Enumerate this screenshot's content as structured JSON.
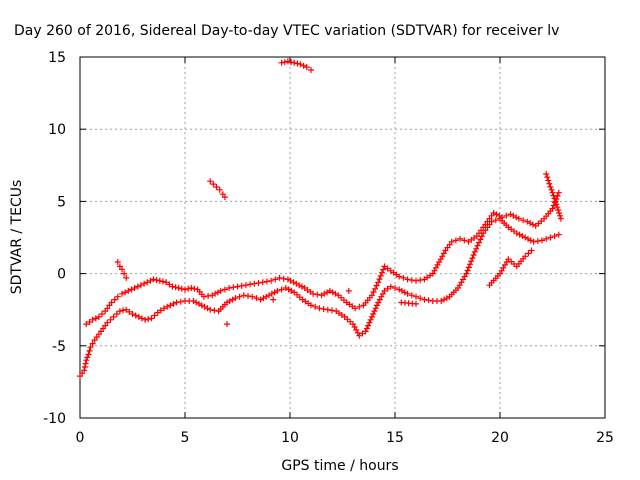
{
  "chart_data": {
    "type": "scatter",
    "title": "Day 260 of 2016, Sidereal Day-to-day VTEC variation (SDTVAR) for receiver lv",
    "xlabel": "GPS time / hours",
    "ylabel": "SDTVAR / TECUs",
    "xlim": [
      0,
      25
    ],
    "ylim": [
      -10,
      15
    ],
    "xticks": [
      "0",
      "5",
      "10",
      "15",
      "20",
      "25"
    ],
    "yticks": [
      "-10",
      "-5",
      "0",
      "5",
      "10",
      "15"
    ],
    "grid": true,
    "legend": "none",
    "marker": "+",
    "color": "#ff0000",
    "series": [
      {
        "values": [
          [
            0.0,
            -7.1
          ],
          [
            0.2,
            -6.7
          ],
          [
            0.3,
            -6.0
          ],
          [
            0.4,
            -5.6
          ],
          [
            0.5,
            -5.1
          ],
          [
            0.7,
            -4.6
          ],
          [
            0.9,
            -4.2
          ],
          [
            1.1,
            -3.8
          ],
          [
            1.3,
            -3.4
          ],
          [
            1.6,
            -3.0
          ],
          [
            1.9,
            -2.6
          ],
          [
            2.2,
            -2.5
          ],
          [
            2.5,
            -2.8
          ],
          [
            2.8,
            -3.0
          ],
          [
            3.1,
            -3.2
          ],
          [
            3.4,
            -3.1
          ],
          [
            3.7,
            -2.7
          ],
          [
            4.0,
            -2.4
          ],
          [
            4.3,
            -2.2
          ],
          [
            4.6,
            -2.0
          ],
          [
            5.0,
            -1.9
          ],
          [
            5.4,
            -1.9
          ],
          [
            5.8,
            -2.2
          ],
          [
            6.2,
            -2.5
          ],
          [
            6.6,
            -2.6
          ],
          [
            7.0,
            -2.0
          ],
          [
            7.4,
            -1.7
          ],
          [
            7.8,
            -1.5
          ],
          [
            8.2,
            -1.6
          ],
          [
            8.6,
            -1.8
          ],
          [
            9.0,
            -1.5
          ],
          [
            9.4,
            -1.2
          ],
          [
            9.8,
            -1.0
          ],
          [
            10.2,
            -1.3
          ],
          [
            10.6,
            -1.8
          ],
          [
            11.0,
            -2.2
          ],
          [
            11.4,
            -2.4
          ],
          [
            11.8,
            -2.5
          ],
          [
            12.2,
            -2.6
          ],
          [
            12.6,
            -3.0
          ],
          [
            13.0,
            -3.5
          ],
          [
            13.3,
            -4.3
          ],
          [
            13.6,
            -4.0
          ],
          [
            13.9,
            -3.0
          ],
          [
            14.2,
            -2.0
          ],
          [
            14.5,
            -1.2
          ],
          [
            14.8,
            -0.9
          ],
          [
            15.2,
            -1.1
          ],
          [
            15.6,
            -1.4
          ],
          [
            16.0,
            -1.6
          ],
          [
            16.4,
            -1.8
          ],
          [
            16.8,
            -1.9
          ],
          [
            17.2,
            -1.9
          ],
          [
            17.6,
            -1.6
          ],
          [
            18.0,
            -1.0
          ],
          [
            18.4,
            0.0
          ],
          [
            18.8,
            1.5
          ],
          [
            19.2,
            2.8
          ],
          [
            19.6,
            3.6
          ],
          [
            20.0,
            3.8
          ],
          [
            20.4,
            3.2
          ],
          [
            20.8,
            2.8
          ],
          [
            21.2,
            2.5
          ],
          [
            21.6,
            2.2
          ],
          [
            22.0,
            2.3
          ],
          [
            22.4,
            2.5
          ],
          [
            22.8,
            2.7
          ]
        ]
      },
      {
        "values": [
          [
            0.3,
            -3.5
          ],
          [
            0.6,
            -3.2
          ],
          [
            0.9,
            -3.0
          ],
          [
            1.2,
            -2.6
          ],
          [
            1.5,
            -2.0
          ],
          [
            1.8,
            -1.6
          ],
          [
            2.0,
            -1.4
          ],
          [
            2.3,
            -1.2
          ],
          [
            2.6,
            -1.0
          ],
          [
            2.9,
            -0.8
          ],
          [
            3.2,
            -0.6
          ],
          [
            3.5,
            -0.4
          ],
          [
            3.8,
            -0.5
          ],
          [
            4.1,
            -0.6
          ],
          [
            4.4,
            -0.9
          ],
          [
            4.7,
            -1.0
          ],
          [
            5.0,
            -1.1
          ],
          [
            5.3,
            -1.0
          ],
          [
            5.6,
            -1.1
          ],
          [
            5.9,
            -1.6
          ],
          [
            6.3,
            -1.5
          ],
          [
            6.7,
            -1.2
          ],
          [
            7.1,
            -1.0
          ],
          [
            7.5,
            -0.9
          ],
          [
            7.9,
            -0.8
          ],
          [
            8.3,
            -0.7
          ],
          [
            8.7,
            -0.6
          ],
          [
            9.1,
            -0.5
          ],
          [
            9.5,
            -0.3
          ],
          [
            9.9,
            -0.4
          ],
          [
            10.3,
            -0.7
          ],
          [
            10.7,
            -1.0
          ],
          [
            11.1,
            -1.4
          ],
          [
            11.5,
            -1.5
          ],
          [
            11.9,
            -1.2
          ],
          [
            12.3,
            -1.5
          ],
          [
            12.7,
            -2.0
          ],
          [
            13.1,
            -2.4
          ],
          [
            13.5,
            -2.2
          ],
          [
            13.9,
            -1.5
          ],
          [
            14.2,
            -0.6
          ],
          [
            14.5,
            0.5
          ],
          [
            14.8,
            0.2
          ],
          [
            15.2,
            -0.2
          ],
          [
            15.6,
            -0.4
          ],
          [
            16.0,
            -0.5
          ],
          [
            16.4,
            -0.4
          ],
          [
            16.8,
            0.0
          ],
          [
            17.1,
            0.8
          ],
          [
            17.4,
            1.6
          ],
          [
            17.7,
            2.2
          ],
          [
            18.1,
            2.4
          ],
          [
            18.5,
            2.2
          ],
          [
            18.9,
            2.6
          ],
          [
            19.3,
            3.4
          ],
          [
            19.7,
            4.2
          ],
          [
            20.1,
            3.9
          ],
          [
            20.5,
            4.1
          ],
          [
            20.9,
            3.8
          ],
          [
            21.3,
            3.6
          ],
          [
            21.7,
            3.3
          ],
          [
            22.1,
            3.8
          ],
          [
            22.5,
            4.5
          ],
          [
            22.8,
            5.6
          ]
        ]
      },
      {
        "values": [
          [
            1.8,
            0.8
          ],
          [
            1.9,
            0.5
          ],
          [
            2.0,
            0.3
          ],
          [
            2.1,
            0.0
          ],
          [
            2.2,
            -0.3
          ],
          [
            6.2,
            6.4
          ],
          [
            6.35,
            6.2
          ],
          [
            6.5,
            6.0
          ],
          [
            6.65,
            5.8
          ],
          [
            6.8,
            5.5
          ],
          [
            6.9,
            5.3
          ],
          [
            9.6,
            14.6
          ],
          [
            9.9,
            14.7
          ],
          [
            10.2,
            14.6
          ],
          [
            10.5,
            14.5
          ],
          [
            10.8,
            14.3
          ],
          [
            11.0,
            14.1
          ],
          [
            7.0,
            -3.5
          ],
          [
            9.2,
            -1.8
          ],
          [
            12.8,
            -1.2
          ],
          [
            15.3,
            -2.0
          ],
          [
            16.0,
            -2.1
          ],
          [
            19.5,
            -0.8
          ],
          [
            20.0,
            0.0
          ],
          [
            20.4,
            1.0
          ],
          [
            20.8,
            0.5
          ],
          [
            21.2,
            1.2
          ],
          [
            21.5,
            1.6
          ],
          [
            22.2,
            6.9
          ],
          [
            22.4,
            6.0
          ],
          [
            22.6,
            5.2
          ],
          [
            22.9,
            3.8
          ]
        ]
      }
    ]
  }
}
